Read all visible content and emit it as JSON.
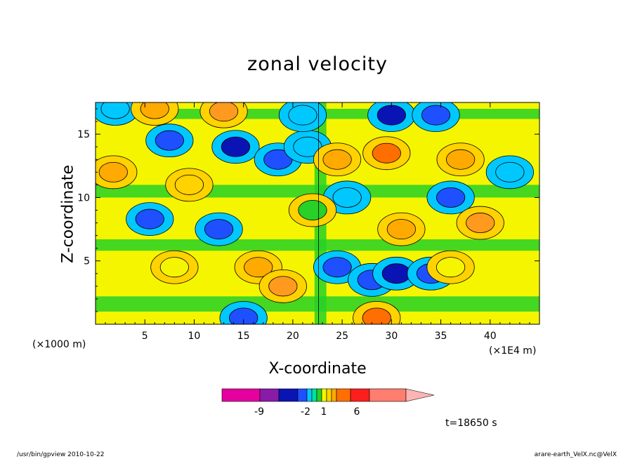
{
  "chart_data": {
    "type": "heatmap",
    "title": "zonal velocity",
    "xlabel": "X-coordinate",
    "ylabel": "Z-coordinate",
    "x_unit_left": "(×1000 m)",
    "x_unit_right": "(×1E4 m)",
    "xlim": [
      0,
      45
    ],
    "ylim": [
      0,
      17.5
    ],
    "xticks": [
      "5",
      "10",
      "15",
      "20",
      "25",
      "30",
      "35",
      "40"
    ],
    "yticks": [
      "5",
      "10",
      "15"
    ],
    "grid": false,
    "colorbar": {
      "tick_labels": [
        "-9",
        "-2",
        "1",
        "6"
      ],
      "colors": [
        "#e6009e",
        "#8a1aa8",
        "#0a14b4",
        "#1e50ff",
        "#00c8ff",
        "#00e0a0",
        "#27d127",
        "#f5f500",
        "#ffd200",
        "#ffaa00",
        "#ff6e00",
        "#ff1e1e",
        "#ff7d6e",
        "#ffb4b4"
      ]
    },
    "features": [
      {
        "x": 5.5,
        "z": 8.3,
        "value": -5
      },
      {
        "x": 12.5,
        "z": 7.5,
        "value": -4
      },
      {
        "x": 7.5,
        "z": 14.5,
        "value": -3
      },
      {
        "x": 14.2,
        "z": 14.0,
        "value": -6
      },
      {
        "x": 18.5,
        "z": 13.0,
        "value": -3
      },
      {
        "x": 21.5,
        "z": 14.0,
        "value": -2
      },
      {
        "x": 24.5,
        "z": 4.5,
        "value": -4
      },
      {
        "x": 28.0,
        "z": 3.5,
        "value": -5
      },
      {
        "x": 30.5,
        "z": 4.0,
        "value": -6
      },
      {
        "x": 34.0,
        "z": 4.0,
        "value": -3
      },
      {
        "x": 30.0,
        "z": 16.5,
        "value": -6
      },
      {
        "x": 34.5,
        "z": 16.5,
        "value": -5
      },
      {
        "x": 21.0,
        "z": 16.5,
        "value": -2
      },
      {
        "x": 15.0,
        "z": 0.5,
        "value": -3
      },
      {
        "x": 36.0,
        "z": 10.0,
        "value": -3
      },
      {
        "x": 42.0,
        "z": 12.0,
        "value": -2
      },
      {
        "x": 2.0,
        "z": 17.0,
        "value": -2
      },
      {
        "x": 25.5,
        "z": 10.0,
        "value": -2
      },
      {
        "x": 6.0,
        "z": 17.0,
        "value": 3
      },
      {
        "x": 13.0,
        "z": 16.8,
        "value": 4
      },
      {
        "x": 16.5,
        "z": 4.5,
        "value": 3
      },
      {
        "x": 19.0,
        "z": 3.0,
        "value": 4
      },
      {
        "x": 24.5,
        "z": 13.0,
        "value": 3
      },
      {
        "x": 29.5,
        "z": 13.5,
        "value": 5
      },
      {
        "x": 37.0,
        "z": 13.0,
        "value": 3
      },
      {
        "x": 1.8,
        "z": 12.0,
        "value": 3
      },
      {
        "x": 9.5,
        "z": 11.0,
        "value": 2
      },
      {
        "x": 31.0,
        "z": 7.5,
        "value": 3
      },
      {
        "x": 39.0,
        "z": 8.0,
        "value": 4
      },
      {
        "x": 28.5,
        "z": 0.5,
        "value": 5
      },
      {
        "x": 36.0,
        "z": 4.5,
        "value": 1
      },
      {
        "x": 8.0,
        "z": 4.5,
        "value": 1
      },
      {
        "x": 22.0,
        "z": 9.0,
        "value": 0
      }
    ]
  },
  "labels": {
    "time": "t=18650 s",
    "footer_left": "/usr/bin/gpview  2010-10-22",
    "footer_right": "arare-earth_VelX.nc@VelX"
  }
}
